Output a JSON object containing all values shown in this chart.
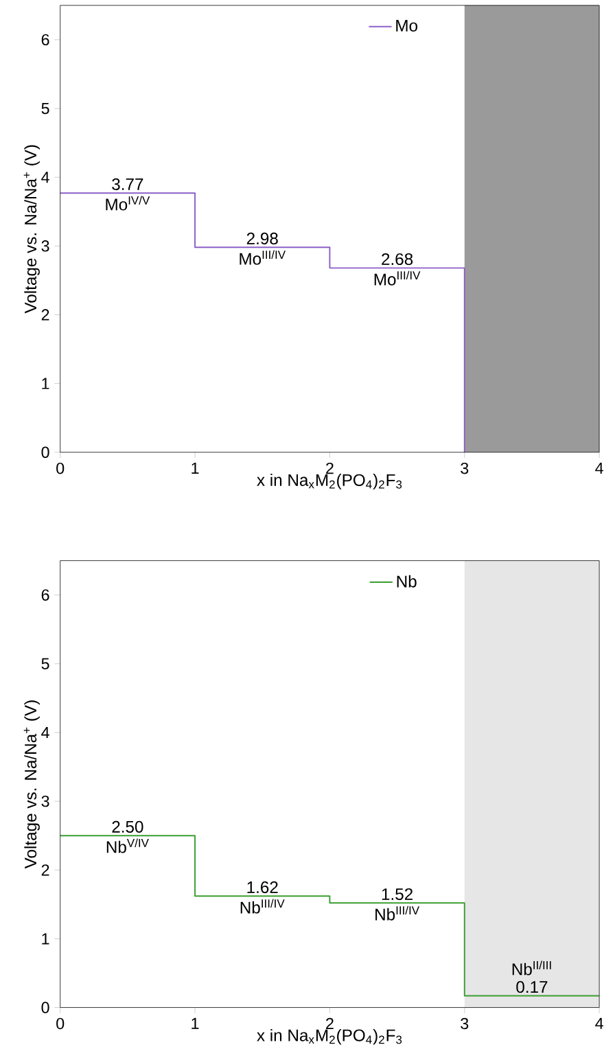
{
  "chart_data": [
    {
      "type": "step",
      "xlabel": "x in Na$_{x}$M$_{2}$(PO$_{4}$)$_{2}$F$_{3}$",
      "ylabel": "Voltage vs. Na/Na$^{+}$ (V)",
      "xlim": [
        0,
        4
      ],
      "ylim": [
        0,
        6.5
      ],
      "xticks": [
        0,
        1,
        2,
        3,
        4
      ],
      "yticks": [
        0,
        1,
        2,
        3,
        4,
        5,
        6
      ],
      "legend": "top",
      "series": [
        {
          "name": "Mo",
          "color": "#8c5fc8",
          "x": [
            0,
            1,
            2,
            3
          ],
          "values": [
            3.77,
            2.98,
            2.68,
            0
          ]
        }
      ],
      "bands": [
        {
          "axis": "x",
          "from": 3,
          "to": 4,
          "color": "#9a9a9a"
        }
      ],
      "annotations": [
        {
          "text": "3.77",
          "x": 0.5,
          "y": 3.77
        },
        {
          "text": "Mo$^{IV/V}$",
          "x": 0.5,
          "y": 3.77
        },
        {
          "text": "2.98",
          "x": 1.5,
          "y": 2.98
        },
        {
          "text": "Mo$^{III/IV}$",
          "x": 1.5,
          "y": 2.98
        },
        {
          "text": "2.68",
          "x": 2.5,
          "y": 2.68
        },
        {
          "text": "Mo$^{III/IV}$",
          "x": 2.5,
          "y": 2.68
        }
      ]
    },
    {
      "type": "step",
      "xlabel": "x in Na$_{x}$M$_{2}$(PO$_{4}$)$_{2}$F$_{3}$",
      "ylabel": "Voltage vs. Na/Na$^{+}$ (V)",
      "xlim": [
        0,
        4
      ],
      "ylim": [
        0,
        6.5
      ],
      "xticks": [
        0,
        1,
        2,
        3,
        4
      ],
      "yticks": [
        0,
        1,
        2,
        3,
        4,
        5,
        6
      ],
      "legend": "top",
      "series": [
        {
          "name": "Nb",
          "color": "#3a9e30",
          "x": [
            0,
            1,
            2,
            3,
            4
          ],
          "values": [
            2.5,
            1.62,
            1.52,
            0.17,
            0.17
          ]
        }
      ],
      "bands": [
        {
          "axis": "x",
          "from": 3,
          "to": 4,
          "color": "#e6e6e6"
        }
      ],
      "annotations": [
        {
          "text": "2.50",
          "x": 0.5,
          "y": 2.5
        },
        {
          "text": "Nb$^{V/IV}$",
          "x": 0.5,
          "y": 2.5
        },
        {
          "text": "1.62",
          "x": 1.5,
          "y": 1.62
        },
        {
          "text": "Nb$^{III/IV}$",
          "x": 1.5,
          "y": 1.62
        },
        {
          "text": "1.52",
          "x": 2.5,
          "y": 1.52
        },
        {
          "text": "Nb$^{III/IV}$",
          "x": 2.5,
          "y": 1.52
        },
        {
          "text": "0.17",
          "x": 3.5,
          "y": 0.17
        },
        {
          "text": "Nb$^{II/III}$",
          "x": 3.5,
          "y": 0.17
        }
      ]
    }
  ]
}
